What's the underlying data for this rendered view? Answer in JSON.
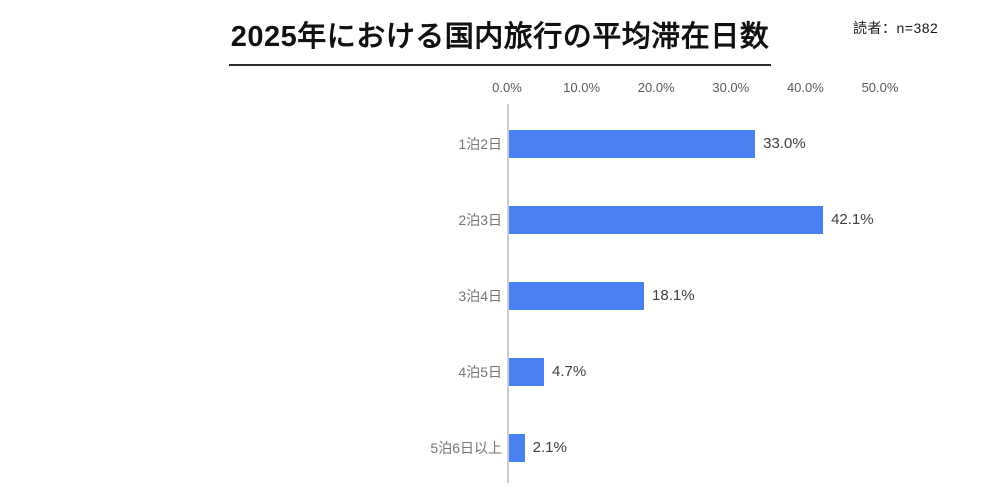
{
  "page": {
    "title": "2025年における国内旅行の平均滞在日数",
    "note": "読者：n=382"
  },
  "colors": {
    "bar": "#4a80f0",
    "axis_line": "#cccccc",
    "tick_label": "#595959",
    "category_label": "#757575",
    "value_label": "#404040",
    "title": "#111111"
  },
  "chart_data": {
    "type": "bar",
    "orientation": "horizontal",
    "title": "2025年における国内旅行の平均滞在日数",
    "annotation": "読者：n=382",
    "categories": [
      "1泊2日",
      "2泊3日",
      "3泊4日",
      "4泊5日",
      "5泊6日以上"
    ],
    "values": [
      33.0,
      42.1,
      18.1,
      4.7,
      2.1
    ],
    "value_labels": [
      "33.0%",
      "42.1%",
      "18.1%",
      "4.7%",
      "2.1%"
    ],
    "xlabel": "",
    "ylabel": "",
    "xlim": [
      0,
      50
    ],
    "x_ticks": [
      0,
      10,
      20,
      30,
      40,
      50
    ],
    "x_tick_labels": [
      "0.0%",
      "10.0%",
      "20.0%",
      "30.0%",
      "40.0%",
      "50.0%"
    ],
    "grid": false,
    "legend": false,
    "bar_color": "#4a80f0"
  }
}
